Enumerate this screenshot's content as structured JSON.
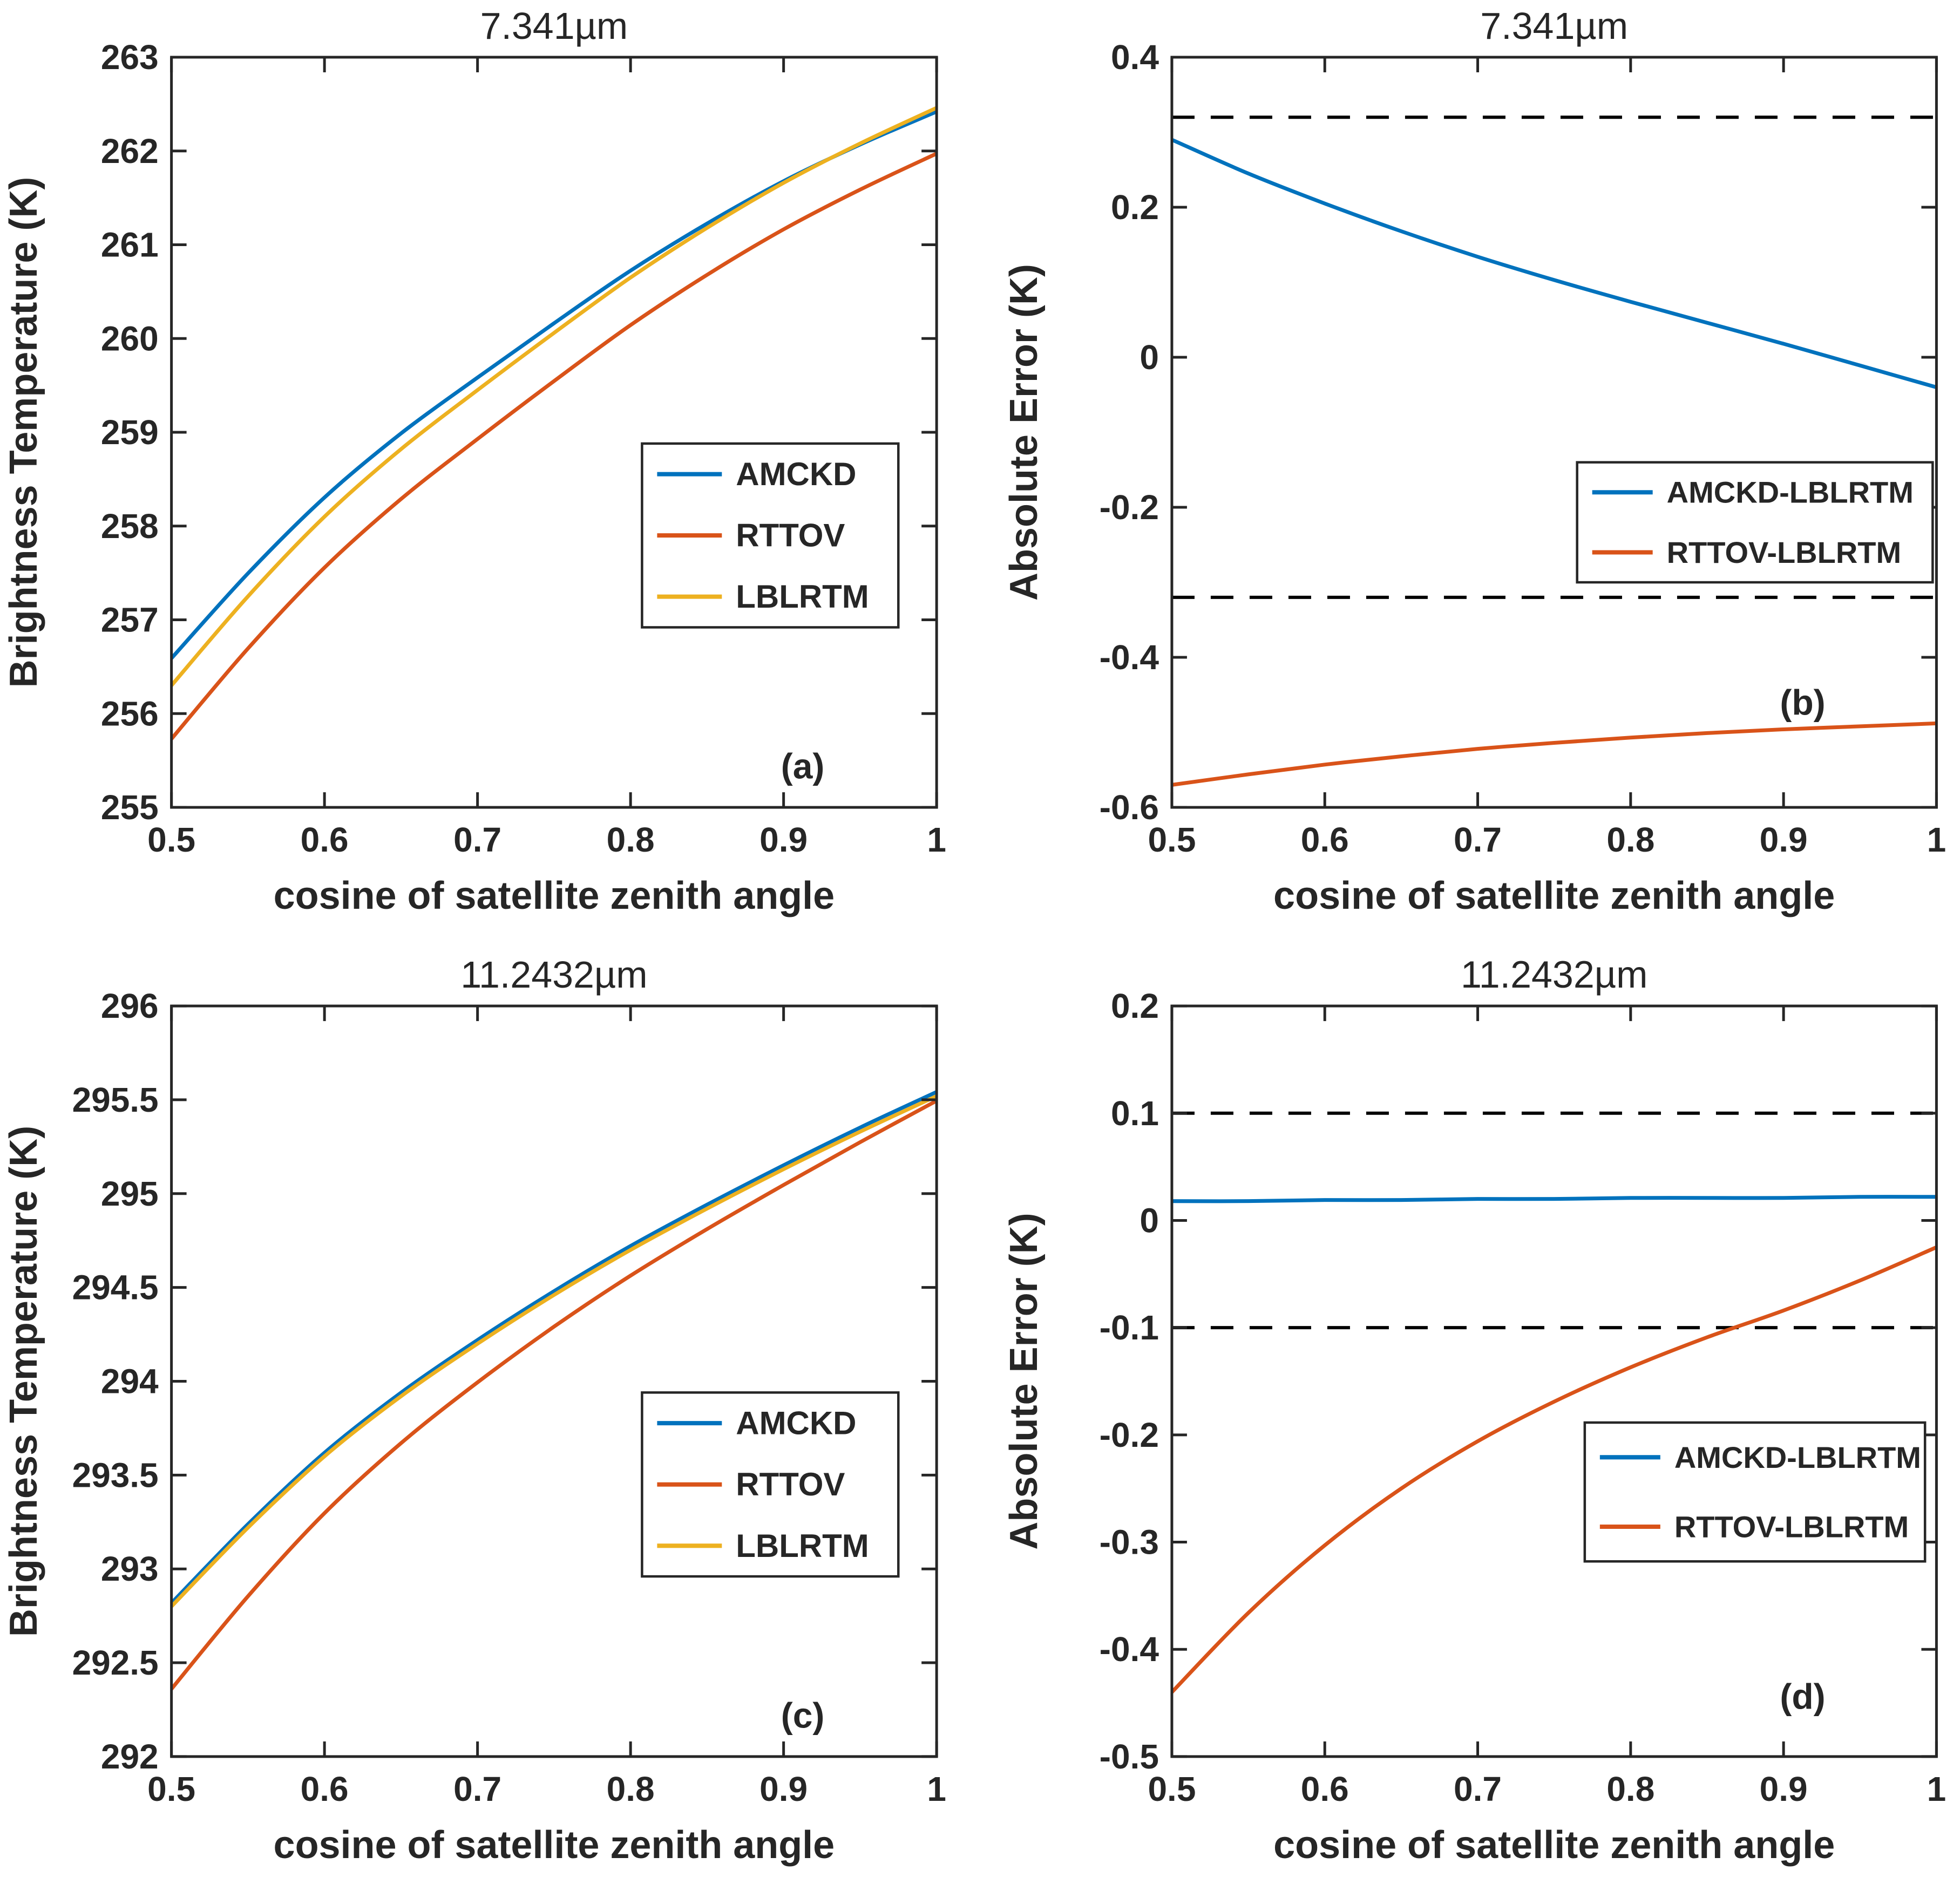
{
  "figure_title": "",
  "colors": {
    "axis": "#262626",
    "text": "#262626",
    "dashed": "#000000",
    "blue": "#0072BD",
    "orange": "#D95319",
    "yellow": "#EDB120",
    "background": "#ffffff"
  },
  "chart_data": [
    {
      "id": "a",
      "type": "line",
      "title": "7.341µm",
      "xlabel": "cosine of satellite zenith angle",
      "ylabel": "Brightness Temperature (K)",
      "corner_label": "(a)",
      "corner_pos": [
        0.825,
        0.945
      ],
      "xlim": [
        0.5,
        1.0
      ],
      "ylim": [
        255,
        263
      ],
      "xticks": [
        0.5,
        0.6,
        0.7,
        0.8,
        0.9,
        1.0
      ],
      "xtick_labels": [
        "0.5",
        "0.6",
        "0.7",
        "0.8",
        "0.9",
        "1"
      ],
      "yticks": [
        255,
        256,
        257,
        258,
        259,
        260,
        261,
        262,
        263
      ],
      "ytick_labels": [
        "255",
        "256",
        "257",
        "258",
        "259",
        "260",
        "261",
        "262",
        "263"
      ],
      "grid": false,
      "dashed_lines": [],
      "x": [
        0.5,
        0.55,
        0.6,
        0.65,
        0.7,
        0.75,
        0.8,
        0.85,
        0.9,
        0.95,
        1.0
      ],
      "series": [
        {
          "name": "AMCKD",
          "color": "#0072BD",
          "values": [
            256.59,
            257.495,
            258.305,
            258.988,
            259.584,
            260.163,
            260.724,
            261.226,
            261.678,
            262.069,
            262.42
          ]
        },
        {
          "name": "RTTOV",
          "color": "#D95319",
          "values": [
            255.73,
            256.694,
            257.557,
            258.288,
            258.928,
            259.546,
            260.143,
            260.679,
            261.164,
            261.588,
            261.972
          ]
        },
        {
          "name": "LBLRTM",
          "color": "#EDB120",
          "values": [
            256.3,
            257.25,
            258.1,
            258.82,
            259.45,
            260.06,
            260.65,
            261.18,
            261.66,
            262.08,
            262.46
          ]
        }
      ],
      "legend": {
        "x0": 0.615,
        "y0": 0.515,
        "x1": 0.95,
        "y1": 0.76,
        "font": 60,
        "sample": 120
      }
    },
    {
      "id": "b",
      "type": "line",
      "title": "7.341µm",
      "xlabel": "cosine of satellite zenith angle",
      "ylabel": "Absolute Error (K)",
      "corner_label": "(b)",
      "corner_pos": [
        0.825,
        0.86
      ],
      "xlim": [
        0.5,
        1.0
      ],
      "ylim": [
        -0.6,
        0.4
      ],
      "xticks": [
        0.5,
        0.6,
        0.7,
        0.8,
        0.9,
        1.0
      ],
      "xtick_labels": [
        "0.5",
        "0.6",
        "0.7",
        "0.8",
        "0.9",
        "1"
      ],
      "yticks": [
        -0.6,
        -0.4,
        -0.2,
        0,
        0.2,
        0.4
      ],
      "ytick_labels": [
        "-0.6",
        "-0.4",
        "-0.2",
        "0",
        "0.2",
        "0.4"
      ],
      "grid": false,
      "dashed_lines": [
        0.32,
        -0.32
      ],
      "x": [
        0.5,
        0.55,
        0.6,
        0.65,
        0.7,
        0.75,
        0.8,
        0.85,
        0.9,
        0.95,
        1.0
      ],
      "series": [
        {
          "name": "AMCKD-LBLRTM",
          "color": "#0072BD",
          "values": [
            0.29,
            0.245,
            0.205,
            0.168,
            0.134,
            0.103,
            0.074,
            0.046,
            0.018,
            -0.011,
            -0.04
          ]
        },
        {
          "name": "RTTOV-LBLRTM",
          "color": "#D95319",
          "values": [
            -0.57,
            -0.556,
            -0.543,
            -0.532,
            -0.522,
            -0.514,
            -0.507,
            -0.501,
            -0.496,
            -0.492,
            -0.488
          ]
        }
      ],
      "legend": {
        "x0": 0.53,
        "y0": 0.54,
        "x1": 0.995,
        "y1": 0.7,
        "font": 56,
        "sample": 112
      }
    },
    {
      "id": "c",
      "type": "line",
      "title": "11.2432µm",
      "xlabel": "cosine of satellite zenith angle",
      "ylabel": "Brightness Temperature (K)",
      "corner_label": "(c)",
      "corner_pos": [
        0.825,
        0.945
      ],
      "xlim": [
        0.5,
        1.0
      ],
      "ylim": [
        292,
        296
      ],
      "xticks": [
        0.5,
        0.6,
        0.7,
        0.8,
        0.9,
        1.0
      ],
      "xtick_labels": [
        "0.5",
        "0.6",
        "0.7",
        "0.8",
        "0.9",
        "1"
      ],
      "yticks": [
        292,
        292.5,
        293,
        293.5,
        294,
        294.5,
        295,
        295.5,
        296
      ],
      "ytick_labels": [
        "292",
        "292.5",
        "293",
        "293.5",
        "294",
        "294.5",
        "295",
        "295.5",
        "296"
      ],
      "grid": false,
      "dashed_lines": [],
      "x": [
        0.5,
        0.55,
        0.6,
        0.65,
        0.7,
        0.75,
        0.8,
        0.85,
        0.9,
        0.95,
        1.0
      ],
      "series": [
        {
          "name": "AMCKD",
          "color": "#0072BD",
          "values": [
            292.818,
            293.238,
            293.619,
            293.939,
            294.22,
            294.48,
            294.721,
            294.941,
            295.151,
            295.352,
            295.542
          ]
        },
        {
          "name": "RTTOV",
          "color": "#D95319",
          "values": [
            292.36,
            292.854,
            293.297,
            293.67,
            293.994,
            294.291,
            294.563,
            294.811,
            295.046,
            295.274,
            295.495
          ]
        },
        {
          "name": "LBLRTM",
          "color": "#EDB120",
          "values": [
            292.8,
            293.22,
            293.6,
            293.92,
            294.2,
            294.46,
            294.7,
            294.92,
            295.13,
            295.33,
            295.52
          ]
        }
      ],
      "legend": {
        "x0": 0.615,
        "y0": 0.515,
        "x1": 0.95,
        "y1": 0.76,
        "font": 60,
        "sample": 120
      }
    },
    {
      "id": "d",
      "type": "line",
      "title": "11.2432µm",
      "xlabel": "cosine of satellite zenith angle",
      "ylabel": "Absolute Error (K)",
      "corner_label": "(d)",
      "corner_pos": [
        0.825,
        0.92
      ],
      "xlim": [
        0.5,
        1.0
      ],
      "ylim": [
        -0.5,
        0.2
      ],
      "xticks": [
        0.5,
        0.6,
        0.7,
        0.8,
        0.9,
        1.0
      ],
      "xtick_labels": [
        "0.5",
        "0.6",
        "0.7",
        "0.8",
        "0.9",
        "1"
      ],
      "yticks": [
        -0.5,
        -0.4,
        -0.3,
        -0.2,
        -0.1,
        0,
        0.1,
        0.2
      ],
      "ytick_labels": [
        "-0.5",
        "-0.4",
        "-0.3",
        "-0.2",
        "-0.1",
        "0",
        "0.1",
        "0.2"
      ],
      "grid": false,
      "dashed_lines": [
        0.1,
        -0.1
      ],
      "x": [
        0.5,
        0.55,
        0.6,
        0.65,
        0.7,
        0.75,
        0.8,
        0.85,
        0.9,
        0.95,
        1.0
      ],
      "series": [
        {
          "name": "AMCKD-LBLRTM",
          "color": "#0072BD",
          "values": [
            0.018,
            0.018,
            0.019,
            0.019,
            0.02,
            0.02,
            0.021,
            0.021,
            0.021,
            0.022,
            0.022
          ]
        },
        {
          "name": "RTTOV-LBLRTM",
          "color": "#D95319",
          "values": [
            -0.44,
            -0.366,
            -0.303,
            -0.25,
            -0.206,
            -0.169,
            -0.137,
            -0.109,
            -0.084,
            -0.056,
            -0.025
          ]
        }
      ],
      "legend": {
        "x0": 0.54,
        "y0": 0.555,
        "x1": 0.985,
        "y1": 0.74,
        "font": 56,
        "sample": 112
      }
    }
  ]
}
